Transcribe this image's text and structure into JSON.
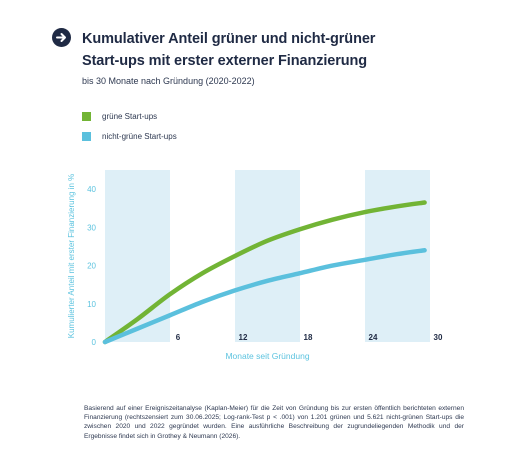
{
  "header": {
    "title_line1": "Kumulativer Anteil grüner und nicht-grüner",
    "title_line2": "Start-ups mit erster externer Finanzierung",
    "subtitle": "bis 30 Monate nach Gründung (2020-2022)",
    "icon": "arrow-right-circle-icon"
  },
  "colors": {
    "green": "#72b435",
    "blue": "#5bc0dd",
    "band": "#deeff7",
    "axis_text": "#5cc3df",
    "title": "#1f2a44"
  },
  "chart_data": {
    "type": "line",
    "xlabel": "Monate seit Gründung",
    "ylabel": "Kumulierter Anteil mit erster Finanzierung in %",
    "xlim": [
      0,
      30
    ],
    "ylim": [
      0,
      45
    ],
    "x_ticks": [
      "6",
      "12",
      "18",
      "24",
      "30"
    ],
    "y_ticks": [
      "0",
      "10",
      "20",
      "30",
      "40"
    ],
    "shaded_bands": [
      [
        0,
        6
      ],
      [
        12,
        18
      ],
      [
        24,
        30
      ]
    ],
    "series": [
      {
        "name": "grüne Start-ups",
        "color": "#72b435",
        "x": [
          0,
          3,
          6,
          9,
          12,
          15,
          18,
          21,
          24,
          27,
          29.5
        ],
        "y": [
          0,
          6,
          12.5,
          18,
          22.5,
          26.5,
          29.5,
          32,
          34,
          35.5,
          36.5
        ]
      },
      {
        "name": "nicht-grüne Start-ups",
        "color": "#5bc0dd",
        "x": [
          0,
          3,
          6,
          9,
          12,
          15,
          18,
          21,
          24,
          27,
          29.5
        ],
        "y": [
          0,
          3.5,
          7,
          10.5,
          13.5,
          16,
          18,
          20,
          21.5,
          23,
          24
        ]
      }
    ]
  },
  "footnote": "Basierend auf einer Ereigniszeitanalyse (Kaplan-Meier) für die Zeit von Gründung bis zur ersten öffentlich berichteten externen Finanzierung (rechtszensiert zum 30.06.2025; Log-rank-Test p < .001) von 1.201 grünen und 5.621 nicht-grünen Start-ups die zwischen 2020 und 2022 gegründet wurden. Eine ausführliche Beschreibung der zugrundeliegenden Methodik und der Ergebnisse findet sich in Grothey & Neumann (2026)."
}
